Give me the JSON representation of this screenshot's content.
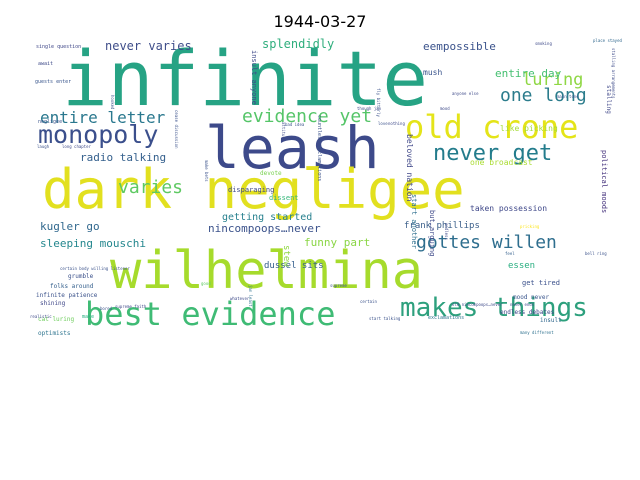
{
  "title": "1944-03-27",
  "words": [
    {
      "text": "infinite",
      "color": "#26a384"
    },
    {
      "text": "leash",
      "color": "#3d4a8a"
    },
    {
      "text": "dark negligee",
      "color": "#e2e01f"
    },
    {
      "text": "wilhelmina",
      "color": "#a6db2c"
    },
    {
      "text": "old crone",
      "color": "#e4e419"
    },
    {
      "text": "best evidence",
      "color": "#3fbb75"
    },
    {
      "text": "makes things",
      "color": "#2da07d"
    },
    {
      "text": "monopoly",
      "color": "#3b4f8c"
    },
    {
      "text": "never get",
      "color": "#237c8c"
    },
    {
      "text": "evidence yet",
      "color": "#55c568"
    },
    {
      "text": "gottes willen",
      "color": "#2e6e8e"
    },
    {
      "text": "varies",
      "color": "#5ec962"
    },
    {
      "text": "entire letter",
      "color": "#2a788e"
    },
    {
      "text": "one long",
      "color": "#2b7c8c"
    },
    {
      "text": "luring",
      "color": "#8fd744"
    },
    {
      "text": "never varies",
      "color": "#3e4d89"
    },
    {
      "text": "splendidly",
      "color": "#2fae7d"
    },
    {
      "text": "eempossible",
      "color": "#3a528b"
    },
    {
      "text": "entire day",
      "color": "#44bf70"
    },
    {
      "text": "radio talking",
      "color": "#35608d"
    },
    {
      "text": "getting started",
      "color": "#27808e"
    },
    {
      "text": "kugler go",
      "color": "#31688e"
    },
    {
      "text": "nincompoops…never",
      "color": "#3b528b"
    },
    {
      "text": "sleeping mouschi",
      "color": "#24878e"
    },
    {
      "text": "funny part",
      "color": "#8bd646"
    },
    {
      "text": "frank phillips",
      "color": "#3b5f8a"
    },
    {
      "text": "dussel sits",
      "color": "#355f8d"
    },
    {
      "text": "essen",
      "color": "#28ae80"
    },
    {
      "text": "beloved nation",
      "color": "#3f4788"
    },
    {
      "text": "one broadcast",
      "color": "#aadc32"
    },
    {
      "text": "taken possession",
      "color": "#3f4889"
    },
    {
      "text": "like picking",
      "color": "#a5db36"
    },
    {
      "text": "mush",
      "color": "#3a548c"
    },
    {
      "text": "dissent",
      "color": "#35b779"
    },
    {
      "text": "disparaging",
      "color": "#3e4a89"
    },
    {
      "text": "devote",
      "color": "#7ad151"
    },
    {
      "text": "insult anyone",
      "color": "#3f4a8a"
    },
    {
      "text": "start another",
      "color": "#2e6f8e"
    },
    {
      "text": "but…arguing",
      "color": "#3e4989"
    },
    {
      "text": "political moods",
      "color": "#46337e"
    },
    {
      "text": "get tired",
      "color": "#3b518b"
    },
    {
      "text": "mood never",
      "color": "#39558c"
    },
    {
      "text": "endless debates",
      "color": "#3f4889"
    },
    {
      "text": "insult",
      "color": "#31688e"
    },
    {
      "text": "stew",
      "color": "#8fd744"
    },
    {
      "text": "grumble",
      "color": "#3b518b"
    },
    {
      "text": "folks around",
      "color": "#35608d"
    },
    {
      "text": "infinite patience",
      "color": "#3b528b"
    },
    {
      "text": "shining",
      "color": "#3f4788"
    },
    {
      "text": "cat luring",
      "color": "#6ccd5a"
    },
    {
      "text": "optimists",
      "color": "#2c738e"
    },
    {
      "text": "negligee",
      "color": "#3a548c"
    },
    {
      "text": "guests enter",
      "color": "#39568c"
    },
    {
      "text": "await",
      "color": "#3e4a89"
    },
    {
      "text": "single question",
      "color": "#3f4788"
    },
    {
      "text": "exclamations",
      "color": "#2c738e"
    },
    {
      "text": "start talking",
      "color": "#3b528b"
    },
    {
      "text": "old nincompoops…never",
      "color": "#3e4989"
    },
    {
      "text": "many different",
      "color": "#2d708e"
    },
    {
      "text": "stalling",
      "color": "#3f4788"
    },
    {
      "text": "stalling arrangements",
      "color": "#3e4c8a"
    },
    {
      "text": "place stayed",
      "color": "#31688e"
    },
    {
      "text": "main tone",
      "color": "#3b528b"
    },
    {
      "text": "pricking",
      "color": "#fde725"
    },
    {
      "text": "make bets",
      "color": "#3b528b"
    },
    {
      "text": "jan least",
      "color": "#2d708e"
    },
    {
      "text": "countless exclamations",
      "color": "#3b528b"
    },
    {
      "text": "long chapter",
      "color": "#3e4a89"
    },
    {
      "text": "bad idea",
      "color": "#3b528b"
    },
    {
      "text": "supreme faith",
      "color": "#3f4788"
    },
    {
      "text": "certain body willing listener",
      "color": "#3b528b"
    },
    {
      "text": "good",
      "color": "#5ec962"
    },
    {
      "text": "make",
      "color": "#28ae80"
    },
    {
      "text": "realistic",
      "color": "#3e4a89"
    },
    {
      "text": "laugh",
      "color": "#3b528b"
    },
    {
      "text": "though jan",
      "color": "#3e4a89"
    },
    {
      "text": "love",
      "color": "#3b528b"
    },
    {
      "text": "endless",
      "color": "#3e4a89"
    },
    {
      "text": "fly bitterly",
      "color": "#3b528b"
    },
    {
      "text": "nothing",
      "color": "#3e4a89"
    },
    {
      "text": "cease discussion",
      "color": "#3b528b"
    },
    {
      "text": "feel",
      "color": "#35608d"
    },
    {
      "text": "never ends",
      "color": "#3e4a89"
    },
    {
      "text": "bored",
      "color": "#3b528b"
    },
    {
      "text": "whatever",
      "color": "#3e4a89"
    },
    {
      "text": "hooked",
      "color": "#3b528b"
    },
    {
      "text": "attitude",
      "color": "#3e4a89"
    },
    {
      "text": "bell ring",
      "color": "#3b528b"
    },
    {
      "text": "mood",
      "color": "#3e4a89"
    },
    {
      "text": "supreme",
      "color": "#3b528b"
    },
    {
      "text": "anyone else",
      "color": "#3e4a89"
    },
    {
      "text": "certain",
      "color": "#3b528b"
    },
    {
      "text": "smoking",
      "color": "#3e4a89"
    }
  ]
}
